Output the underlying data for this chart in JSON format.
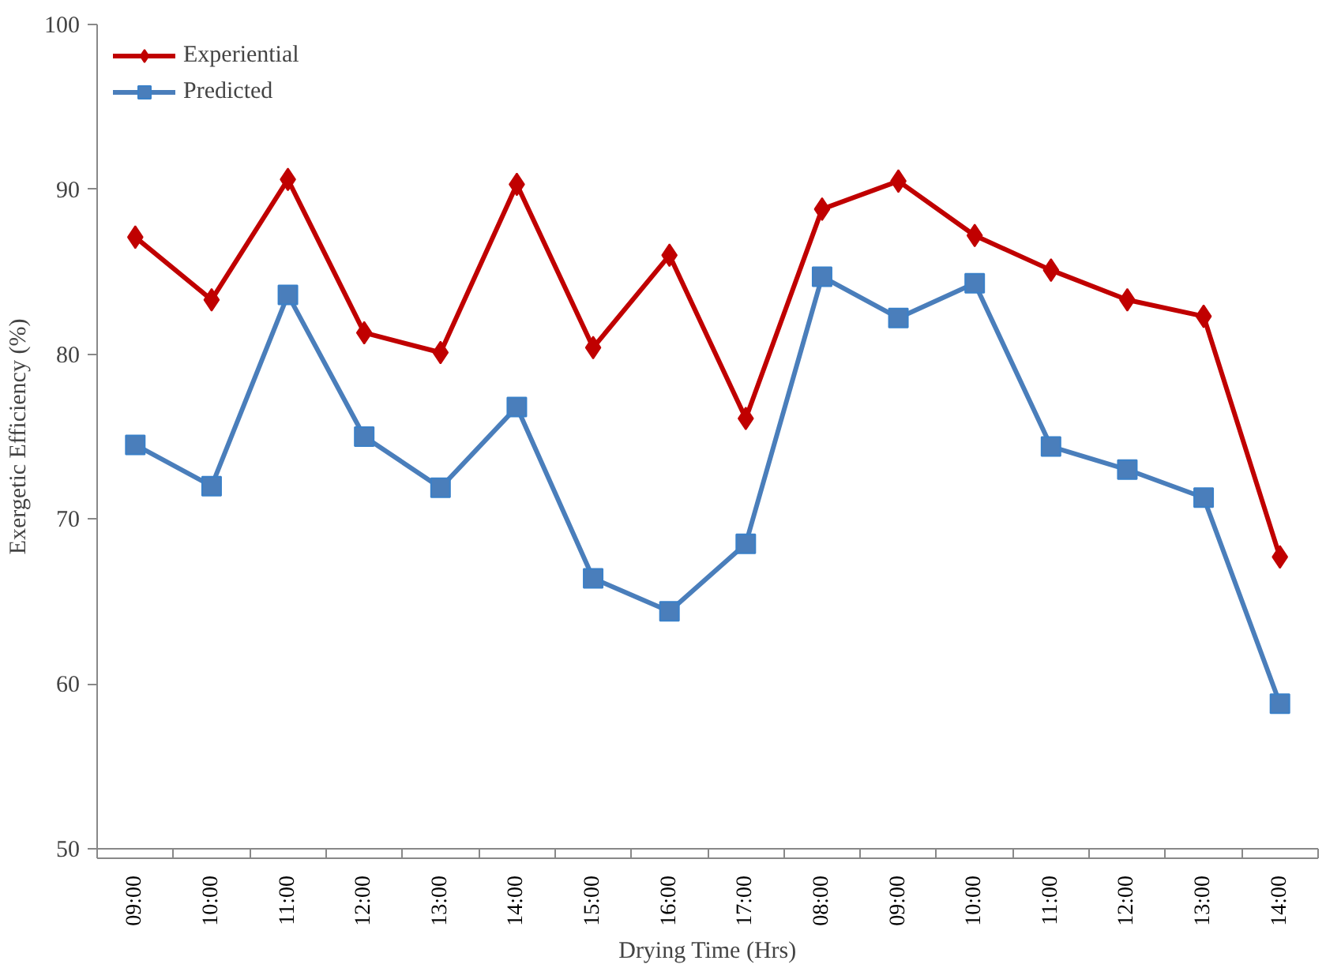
{
  "chart_data": {
    "type": "line",
    "xlabel": "Drying Time (Hrs)",
    "ylabel": "Exergetic Efficiency (%)",
    "categories": [
      "09:00",
      "10:00",
      "11:00",
      "12:00",
      "13:00",
      "14:00",
      "15:00",
      "16:00",
      "17:00",
      "08:00",
      "09:00",
      "10:00",
      "11:00",
      "12:00",
      "13:00",
      "14:00"
    ],
    "series": [
      {
        "name": "Experiential",
        "color": "#c00000",
        "marker": "diamond",
        "values": [
          87.1,
          83.3,
          90.6,
          81.3,
          80.1,
          90.3,
          80.4,
          86.0,
          76.1,
          88.8,
          90.5,
          87.2,
          85.1,
          83.3,
          82.3,
          67.7
        ]
      },
      {
        "name": "Predicted",
        "color": "#4a7ebb",
        "marker": "square",
        "values": [
          74.5,
          72.0,
          83.6,
          75.0,
          71.9,
          76.8,
          66.4,
          64.4,
          68.5,
          84.7,
          82.2,
          84.3,
          74.4,
          73.0,
          71.3,
          58.8
        ]
      }
    ],
    "ylim": [
      50,
      100
    ],
    "yticks": [
      50,
      60,
      70,
      80,
      90,
      100
    ],
    "grid": false,
    "legend": "top left",
    "line_style": "solid"
  }
}
